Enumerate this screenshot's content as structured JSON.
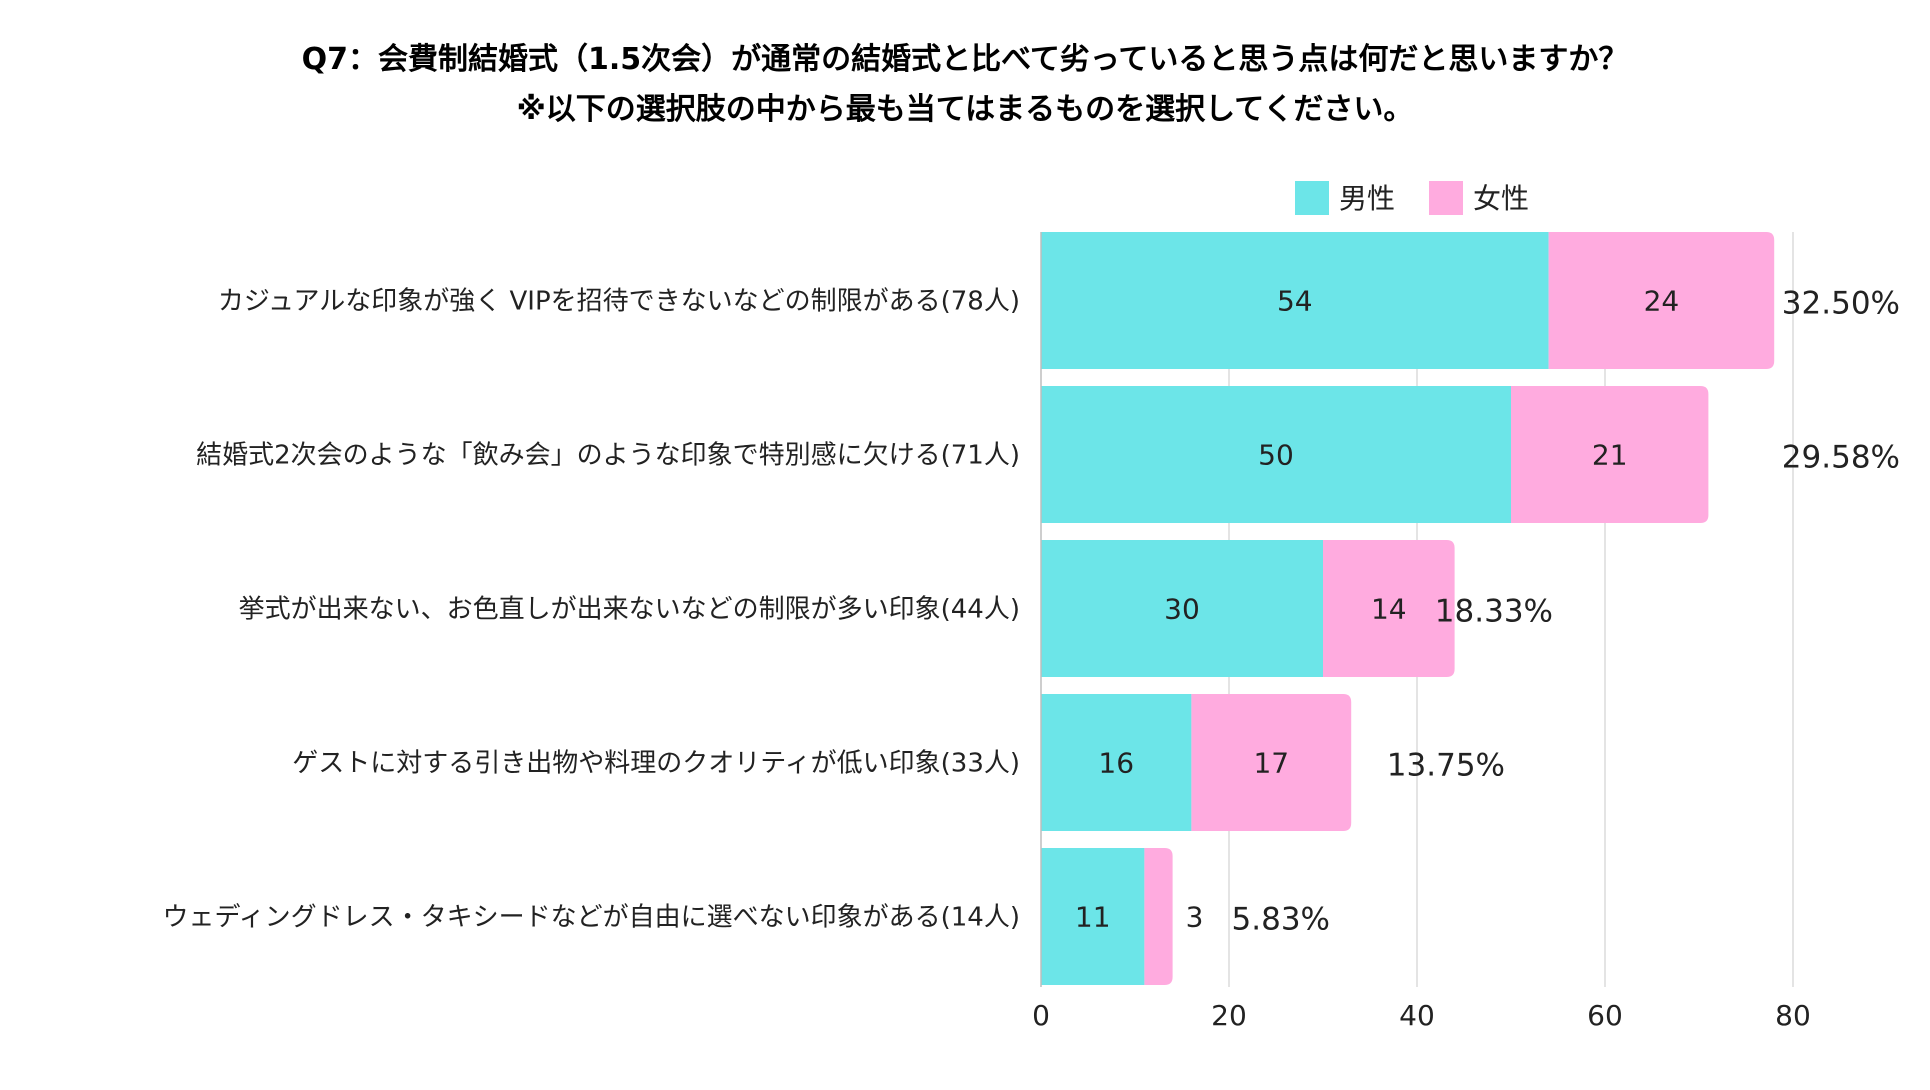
{
  "chart_data": {
    "type": "bar",
    "orientation": "horizontal",
    "stacked": true,
    "title": "Q7：会費制結婚式（1.5次会）が通常の結婚式と比べて劣っていると思う点は何だと思いますか？",
    "subtitle": "※以下の選択肢の中から最も当てはまるものを選択してください。",
    "categories": [
      "カジュアルな印象が強く VIPを招待できないなどの制限がある(78人)",
      "結婚式2次会のような「飲み会」のような印象で特別感に欠ける(71人)",
      "挙式が出来ない、お色直しが出来ないなどの制限が多い印象(44人)",
      "ゲストに対する引き出物や料理のクオリティが低い印象(33人)",
      "ウェディングドレス・タキシードなどが自由に選べない印象がある(14人)"
    ],
    "series": [
      {
        "name": "男性",
        "color": "#6ce5e8",
        "values": [
          54,
          50,
          30,
          16,
          11
        ]
      },
      {
        "name": "女性",
        "color": "#ffabdf",
        "values": [
          24,
          21,
          14,
          17,
          3
        ]
      }
    ],
    "percentages": [
      "32.50%",
      "29.58%",
      "18.33%",
      "13.75%",
      "5.83%"
    ],
    "xlim": [
      0,
      80
    ],
    "xticks": [
      0,
      20,
      40,
      60,
      80
    ],
    "grid": true,
    "legend_position": "top-right",
    "xlabel": "",
    "ylabel": ""
  }
}
